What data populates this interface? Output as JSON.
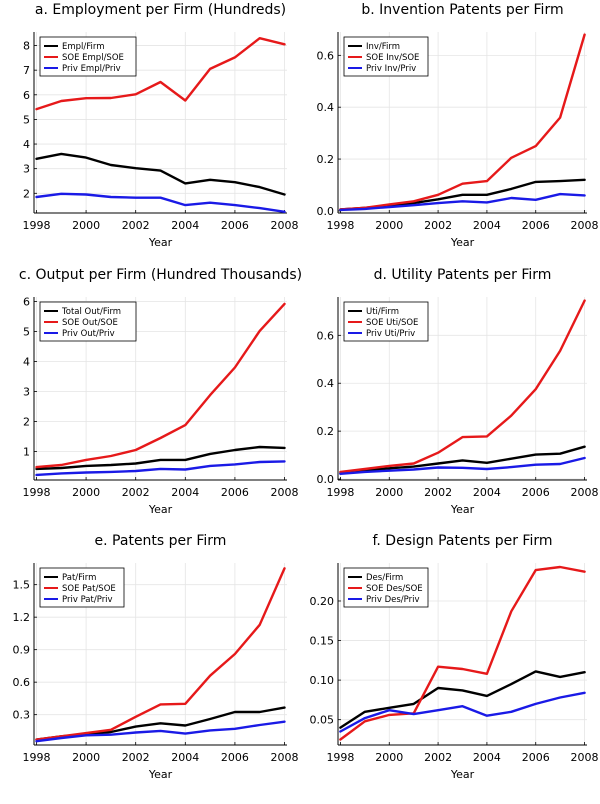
{
  "chart_data": [
    {
      "type": "line",
      "title": "a. Employment per Firm (Hundreds)",
      "xlabel": "Year",
      "ylabel": "",
      "x": [
        1998,
        1999,
        2000,
        2001,
        2002,
        2003,
        2004,
        2005,
        2006,
        2007,
        2008
      ],
      "xlim": [
        1997.9,
        2008.1
      ],
      "ylim": [
        1.2,
        8.55
      ],
      "xticks": [
        1998,
        2000,
        2002,
        2004,
        2006,
        2008
      ],
      "yticks": [
        2,
        3,
        4,
        5,
        6,
        7,
        8
      ],
      "yticklabels": [
        "2",
        "3",
        "4",
        "5",
        "6",
        "7",
        "8"
      ],
      "grid": true,
      "legend_position": "top-left",
      "series": [
        {
          "name": "Empl/Firm",
          "color": "#000000",
          "values": [
            3.4,
            3.6,
            3.45,
            3.15,
            3.02,
            2.92,
            2.4,
            2.55,
            2.45,
            2.25,
            1.95
          ]
        },
        {
          "name": "SOE Empl/SOE",
          "color": "#e6191a",
          "values": [
            5.42,
            5.75,
            5.86,
            5.87,
            6.02,
            6.52,
            5.77,
            7.05,
            7.52,
            8.3,
            8.05
          ]
        },
        {
          "name": "Priv Empl/Priv",
          "color": "#1a1ae6",
          "values": [
            1.85,
            1.98,
            1.95,
            1.85,
            1.82,
            1.82,
            1.52,
            1.62,
            1.52,
            1.4,
            1.25
          ]
        }
      ]
    },
    {
      "type": "line",
      "title": "b. Invention Patents per Firm",
      "xlabel": "Year",
      "ylabel": "",
      "x": [
        1998,
        1999,
        2000,
        2001,
        2002,
        2003,
        2004,
        2005,
        2006,
        2007,
        2008
      ],
      "xlim": [
        1997.9,
        2008.1
      ],
      "ylim": [
        -0.008,
        0.69
      ],
      "xticks": [
        1998,
        2000,
        2002,
        2004,
        2006,
        2008
      ],
      "yticks": [
        0.0,
        0.2,
        0.4,
        0.6
      ],
      "yticklabels": [
        "0.0",
        "0.2",
        "0.4",
        "0.6"
      ],
      "grid": true,
      "legend_position": "top-left",
      "series": [
        {
          "name": "Inv/Firm",
          "color": "#000000",
          "values": [
            0.006,
            0.012,
            0.02,
            0.03,
            0.045,
            0.062,
            0.062,
            0.085,
            0.112,
            0.115,
            0.12
          ]
        },
        {
          "name": "SOE Inv/SOE",
          "color": "#e6191a",
          "values": [
            0.006,
            0.012,
            0.025,
            0.037,
            0.062,
            0.105,
            0.115,
            0.205,
            0.25,
            0.36,
            0.68
          ]
        },
        {
          "name": "Priv Inv/Priv",
          "color": "#1a1ae6",
          "values": [
            0.004,
            0.008,
            0.015,
            0.022,
            0.03,
            0.037,
            0.033,
            0.05,
            0.043,
            0.065,
            0.06
          ]
        }
      ]
    },
    {
      "type": "line",
      "title": "c. Output per Firm (Hundred Thousands)",
      "xlabel": "Year",
      "ylabel": "",
      "x": [
        1998,
        1999,
        2000,
        2001,
        2002,
        2003,
        2004,
        2005,
        2006,
        2007,
        2008
      ],
      "xlim": [
        1997.9,
        2008.1
      ],
      "ylim": [
        0.05,
        6.15
      ],
      "xticks": [
        1998,
        2000,
        2002,
        2004,
        2006,
        2008
      ],
      "yticks": [
        1,
        2,
        3,
        4,
        5,
        6
      ],
      "yticklabels": [
        "1",
        "2",
        "3",
        "4",
        "5",
        "6"
      ],
      "grid": true,
      "legend_position": "top-left",
      "series": [
        {
          "name": "Total Out/Firm",
          "color": "#000000",
          "values": [
            0.42,
            0.45,
            0.52,
            0.55,
            0.6,
            0.72,
            0.72,
            0.92,
            1.05,
            1.15,
            1.12
          ]
        },
        {
          "name": "SOE Out/SOE",
          "color": "#e6191a",
          "values": [
            0.48,
            0.55,
            0.72,
            0.85,
            1.05,
            1.45,
            1.88,
            2.88,
            3.8,
            5.02,
            5.92
          ]
        },
        {
          "name": "Priv Out/Priv",
          "color": "#1a1ae6",
          "values": [
            0.22,
            0.27,
            0.3,
            0.32,
            0.35,
            0.42,
            0.4,
            0.52,
            0.57,
            0.65,
            0.67
          ]
        }
      ]
    },
    {
      "type": "line",
      "title": "d. Utility Patents per Firm",
      "xlabel": "Year",
      "ylabel": "",
      "x": [
        1998,
        1999,
        2000,
        2001,
        2002,
        2003,
        2004,
        2005,
        2006,
        2007,
        2008
      ],
      "xlim": [
        1997.9,
        2008.1
      ],
      "ylim": [
        -0.004,
        0.76
      ],
      "xticks": [
        1998,
        2000,
        2002,
        2004,
        2006,
        2008
      ],
      "yticks": [
        0.0,
        0.2,
        0.4,
        0.6
      ],
      "yticklabels": [
        "0.0",
        "0.2",
        "0.4",
        "0.6"
      ],
      "grid": true,
      "legend_position": "top-left",
      "series": [
        {
          "name": "Uti/Firm",
          "color": "#000000",
          "values": [
            0.025,
            0.035,
            0.045,
            0.052,
            0.065,
            0.078,
            0.068,
            0.085,
            0.102,
            0.106,
            0.135
          ]
        },
        {
          "name": "SOE Uti/SOE",
          "color": "#e6191a",
          "values": [
            0.03,
            0.042,
            0.055,
            0.065,
            0.11,
            0.175,
            0.178,
            0.265,
            0.375,
            0.535,
            0.745
          ]
        },
        {
          "name": "Priv Uti/Priv",
          "color": "#1a1ae6",
          "values": [
            0.022,
            0.03,
            0.035,
            0.04,
            0.048,
            0.047,
            0.042,
            0.05,
            0.06,
            0.063,
            0.088
          ]
        }
      ]
    },
    {
      "type": "line",
      "title": "e. Patents per Firm",
      "xlabel": "Year",
      "ylabel": "",
      "x": [
        1998,
        1999,
        2000,
        2001,
        2002,
        2003,
        2004,
        2005,
        2006,
        2007,
        2008
      ],
      "xlim": [
        1997.9,
        2008.1
      ],
      "ylim": [
        0.02,
        1.7
      ],
      "xticks": [
        1998,
        2000,
        2002,
        2004,
        2006,
        2008
      ],
      "yticks": [
        0.3,
        0.6,
        0.9,
        1.2,
        1.5
      ],
      "yticklabels": [
        "0.3",
        "0.6",
        "0.9",
        "1.2",
        "1.5"
      ],
      "grid": true,
      "legend_position": "top-left",
      "series": [
        {
          "name": "Pat/Firm",
          "color": "#000000",
          "values": [
            0.07,
            0.1,
            0.12,
            0.14,
            0.19,
            0.22,
            0.2,
            0.26,
            0.325,
            0.325,
            0.365
          ]
        },
        {
          "name": "SOE Pat/SOE",
          "color": "#e6191a",
          "values": [
            0.07,
            0.1,
            0.13,
            0.16,
            0.28,
            0.395,
            0.4,
            0.66,
            0.86,
            1.13,
            1.65
          ]
        },
        {
          "name": "Priv Pat/Priv",
          "color": "#1a1ae6",
          "values": [
            0.055,
            0.085,
            0.11,
            0.115,
            0.135,
            0.15,
            0.125,
            0.155,
            0.17,
            0.205,
            0.235
          ]
        }
      ]
    },
    {
      "type": "line",
      "title": "f. Design Patents per Firm",
      "xlabel": "Year",
      "ylabel": "",
      "x": [
        1998,
        1999,
        2000,
        2001,
        2002,
        2003,
        2004,
        2005,
        2006,
        2007,
        2008
      ],
      "xlim": [
        1997.9,
        2008.1
      ],
      "ylim": [
        0.018,
        0.248
      ],
      "xticks": [
        1998,
        2000,
        2002,
        2004,
        2006,
        2008
      ],
      "yticks": [
        0.05,
        0.1,
        0.15,
        0.2
      ],
      "yticklabels": [
        "0.05",
        "0.10",
        "0.15",
        "0.20"
      ],
      "grid": true,
      "legend_position": "top-left",
      "series": [
        {
          "name": "Des/Firm",
          "color": "#000000",
          "values": [
            0.04,
            0.06,
            0.065,
            0.07,
            0.09,
            0.087,
            0.08,
            0.095,
            0.111,
            0.104,
            0.11
          ]
        },
        {
          "name": "SOE Des/SOE",
          "color": "#e6191a",
          "values": [
            0.025,
            0.048,
            0.056,
            0.058,
            0.117,
            0.114,
            0.108,
            0.187,
            0.239,
            0.243,
            0.237
          ]
        },
        {
          "name": "Priv Des/Priv",
          "color": "#1a1ae6",
          "values": [
            0.035,
            0.052,
            0.062,
            0.057,
            0.062,
            0.067,
            0.055,
            0.06,
            0.07,
            0.078,
            0.084
          ]
        }
      ]
    }
  ]
}
